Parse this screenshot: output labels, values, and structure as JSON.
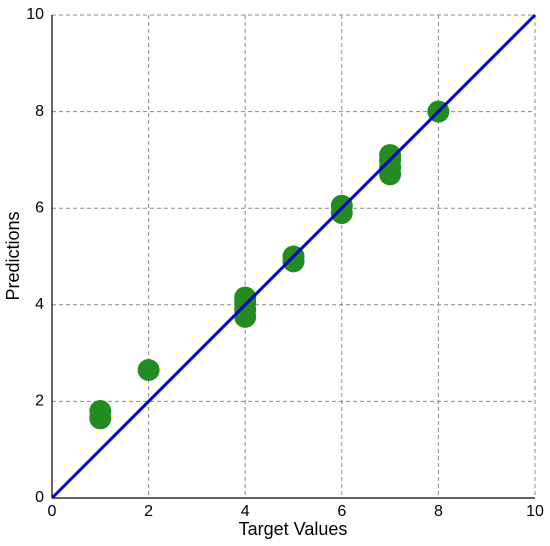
{
  "chart_data": {
    "type": "scatter",
    "x_label": "Target Values",
    "y_label": "Predictions",
    "x": [
      1,
      1,
      2,
      4,
      4,
      4,
      4,
      5,
      5,
      6,
      6,
      7,
      7,
      7,
      7,
      8
    ],
    "values": [
      1.65,
      1.8,
      2.65,
      3.75,
      3.9,
      4.05,
      4.15,
      4.9,
      5.0,
      5.9,
      6.05,
      6.7,
      6.85,
      7.0,
      7.1,
      8.0
    ],
    "color": "#228b22",
    "reference_line": {
      "x": [
        0,
        10
      ],
      "values": [
        0,
        10
      ],
      "color": "#0000cd"
    },
    "xlim": [
      0,
      10
    ],
    "ylim": [
      0,
      10
    ],
    "xticks": [
      0,
      2,
      4,
      6,
      8,
      10
    ],
    "yticks": [
      0,
      2,
      4,
      6,
      8,
      10
    ],
    "grid": true
  }
}
